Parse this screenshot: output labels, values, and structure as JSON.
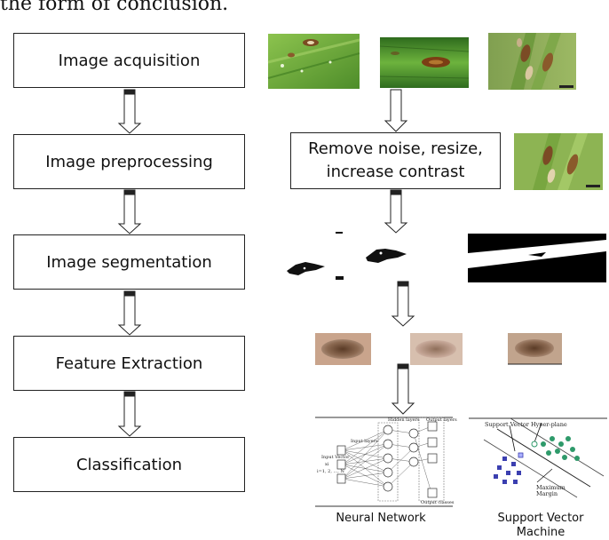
{
  "top_text": "the form of conclusion.",
  "stages": [
    {
      "label": "Image acquisition"
    },
    {
      "label": "Image preprocessing"
    },
    {
      "label": "Image segmentation"
    },
    {
      "label": "Feature Extraction"
    },
    {
      "label": "Classification"
    }
  ],
  "preprocessing_box": {
    "line1": "Remove noise, resize,",
    "line2": "increase contrast"
  },
  "captions": {
    "neural_network": "Neural Network",
    "svm_line1": "Support Vector",
    "svm_line2": "Machine"
  },
  "nn_figure": {
    "hidden_layers": "Hidden layers",
    "input_layers": "Input layers",
    "output_layers": "Output layers",
    "input_vector": "Input Vector",
    "input_vector_symbol": "xi",
    "input_vector_range": "i=1, 2, ..., N",
    "output_classes": "Output classes"
  },
  "svm_figure": {
    "hyperplane_label": "Support Vector Hyper-plane",
    "margin_label_1": "Maximum",
    "margin_label_2": "Margin"
  },
  "colors": {
    "leaf_green": "#6fae3a",
    "leaf_dark": "#3f7d22",
    "lesion_brown": "#8a5a2b",
    "svm_square": "#3b3fb0",
    "svm_circle": "#2e9a6a"
  }
}
